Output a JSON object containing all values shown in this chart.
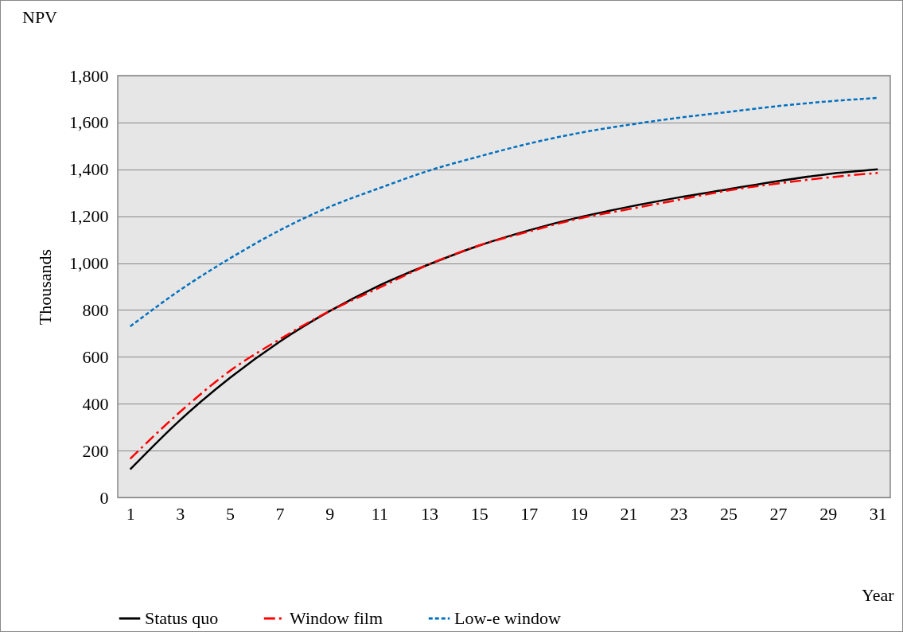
{
  "chart_data": {
    "type": "line",
    "title": "NPV",
    "ylabel": "Thousands",
    "xlabel": "Year",
    "x": [
      1,
      3,
      5,
      7,
      9,
      11,
      13,
      15,
      17,
      19,
      21,
      23,
      25,
      27,
      29,
      31
    ],
    "xlim": [
      0.5,
      31.5
    ],
    "xticks": [
      1,
      3,
      5,
      7,
      9,
      11,
      13,
      15,
      17,
      19,
      21,
      23,
      25,
      27,
      29,
      31
    ],
    "ylim": [
      0,
      1800
    ],
    "yticks": [
      0,
      200,
      400,
      600,
      800,
      {
        "value": 1000,
        "label": "1,000"
      },
      {
        "value": 1200,
        "label": "1,200"
      },
      {
        "value": 1400,
        "label": "1,400"
      },
      {
        "value": 1600,
        "label": "1,600"
      },
      {
        "value": 1800,
        "label": "1,800"
      }
    ],
    "grid": "y",
    "legend": "bottom",
    "marker": "none",
    "series": [
      {
        "name": "Status quo",
        "color": "#000000",
        "line_style": "solid",
        "values": [
          120,
          330,
          510,
          665,
          795,
          905,
          995,
          1075,
          1140,
          1195,
          1240,
          1280,
          1315,
          1350,
          1380,
          1400
        ]
      },
      {
        "name": "Window film",
        "color": "#ff0000",
        "line_style": "dashed",
        "values": [
          165,
          365,
          540,
          675,
          795,
          895,
          995,
          1075,
          1135,
          1190,
          1230,
          1270,
          1310,
          1340,
          1365,
          1385
        ]
      },
      {
        "name": "Low-e window",
        "color": "#0070c0",
        "line_style": "dotted",
        "values": [
          730,
          885,
          1020,
          1140,
          1240,
          1320,
          1395,
          1455,
          1510,
          1555,
          1590,
          1620,
          1645,
          1670,
          1690,
          1705
        ]
      }
    ]
  }
}
